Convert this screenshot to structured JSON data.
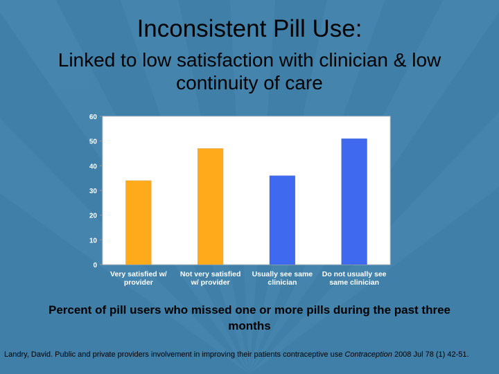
{
  "slide": {
    "title": "Inconsistent Pill Use:",
    "subtitle": "Linked to low satisfaction with clinician & low continuity of care",
    "caption": "Percent of pill users who missed one or more pills during the past three months",
    "citation_pre": "Landry, David. Public and private providers involvement in improving their patients contraceptive use",
    "citation_journal": "Contraception",
    "citation_post": " 2008 Jul 78 (1) 42-51.",
    "colors": {
      "background": "#3f7fa8",
      "orange": "#ffaa1a",
      "blue": "#3f6af0"
    }
  },
  "chart_data": {
    "type": "bar",
    "categories": [
      [
        "Very satisfied w/",
        "provider"
      ],
      [
        "Not very satisfied",
        "w/ provider"
      ],
      [
        "Usually see same",
        "clinician"
      ],
      [
        "Do not usually see",
        "same clinician"
      ]
    ],
    "values": [
      34,
      47,
      36,
      51
    ],
    "bar_colors": [
      "#ffaa1a",
      "#ffaa1a",
      "#3f6af0",
      "#3f6af0"
    ],
    "ylim": [
      0,
      60
    ],
    "yticks": [
      0,
      10,
      20,
      30,
      40,
      50,
      60
    ],
    "data_labels": true,
    "grid": false,
    "xlabel": "",
    "ylabel": ""
  }
}
